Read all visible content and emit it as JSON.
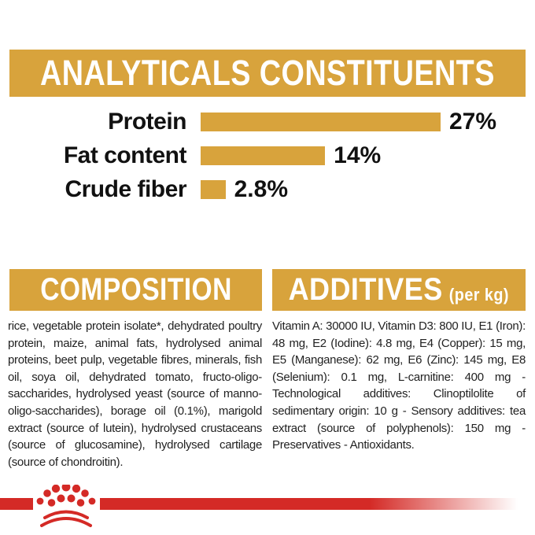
{
  "colors": {
    "gold": "#D8A33C",
    "red": "#D42A26",
    "header_text": "#ffffff",
    "body_text": "#222222"
  },
  "header": {
    "title": "ANALYTICALS CONSTITUENTS"
  },
  "chart_data": {
    "type": "bar",
    "orientation": "horizontal",
    "categories": [
      "Protein",
      "Fat content",
      "Crude fiber"
    ],
    "values": [
      27,
      14,
      2.8
    ],
    "value_labels": [
      "27%",
      "14%",
      "2.8%"
    ],
    "unit": "%",
    "xlim": [
      0,
      27
    ],
    "bar_color": "#D8A33C",
    "grid": false,
    "legend": false,
    "title": "ANALYTICALS CONSTITUENTS"
  },
  "sections": {
    "composition": {
      "title": "COMPOSITION",
      "body": "rice, vegetable protein isolate*, dehydrated poultry protein, maize, animal fats, hydrolysed animal proteins, beet pulp, vegetable fibres, minerals, fish oil, soya oil, dehydrated tomato, fructo-oligo-saccharides, hydrolysed yeast (source of manno-oligo-saccharides), borage oil (0.1%), marigold extract (source of lutein), hydrolysed crustaceans (source of glucosamine), hydrolysed cartilage (source of chondroitin)."
    },
    "additives": {
      "title": "ADDITIVES",
      "title_suffix": "(per kg)",
      "body": "Vitamin A: 30000 IU, Vitamin D3: 800 IU, E1 (Iron): 48 mg, E2 (Iodine): 4.8 mg, E4 (Copper): 15 mg, E5 (Manganese): 62 mg, E6 (Zinc): 145 mg, E8 (Selenium): 0.1 mg, L-carnitine: 400 mg - Technological additives: Clinoptilolite of sedimentary origin: 10 g - Sensory additives: tea extract (source of polyphenols): 150 mg - Preservatives - Antioxidants."
    }
  },
  "footer": {
    "brand_icon": "royal-canin-crown-icon"
  }
}
